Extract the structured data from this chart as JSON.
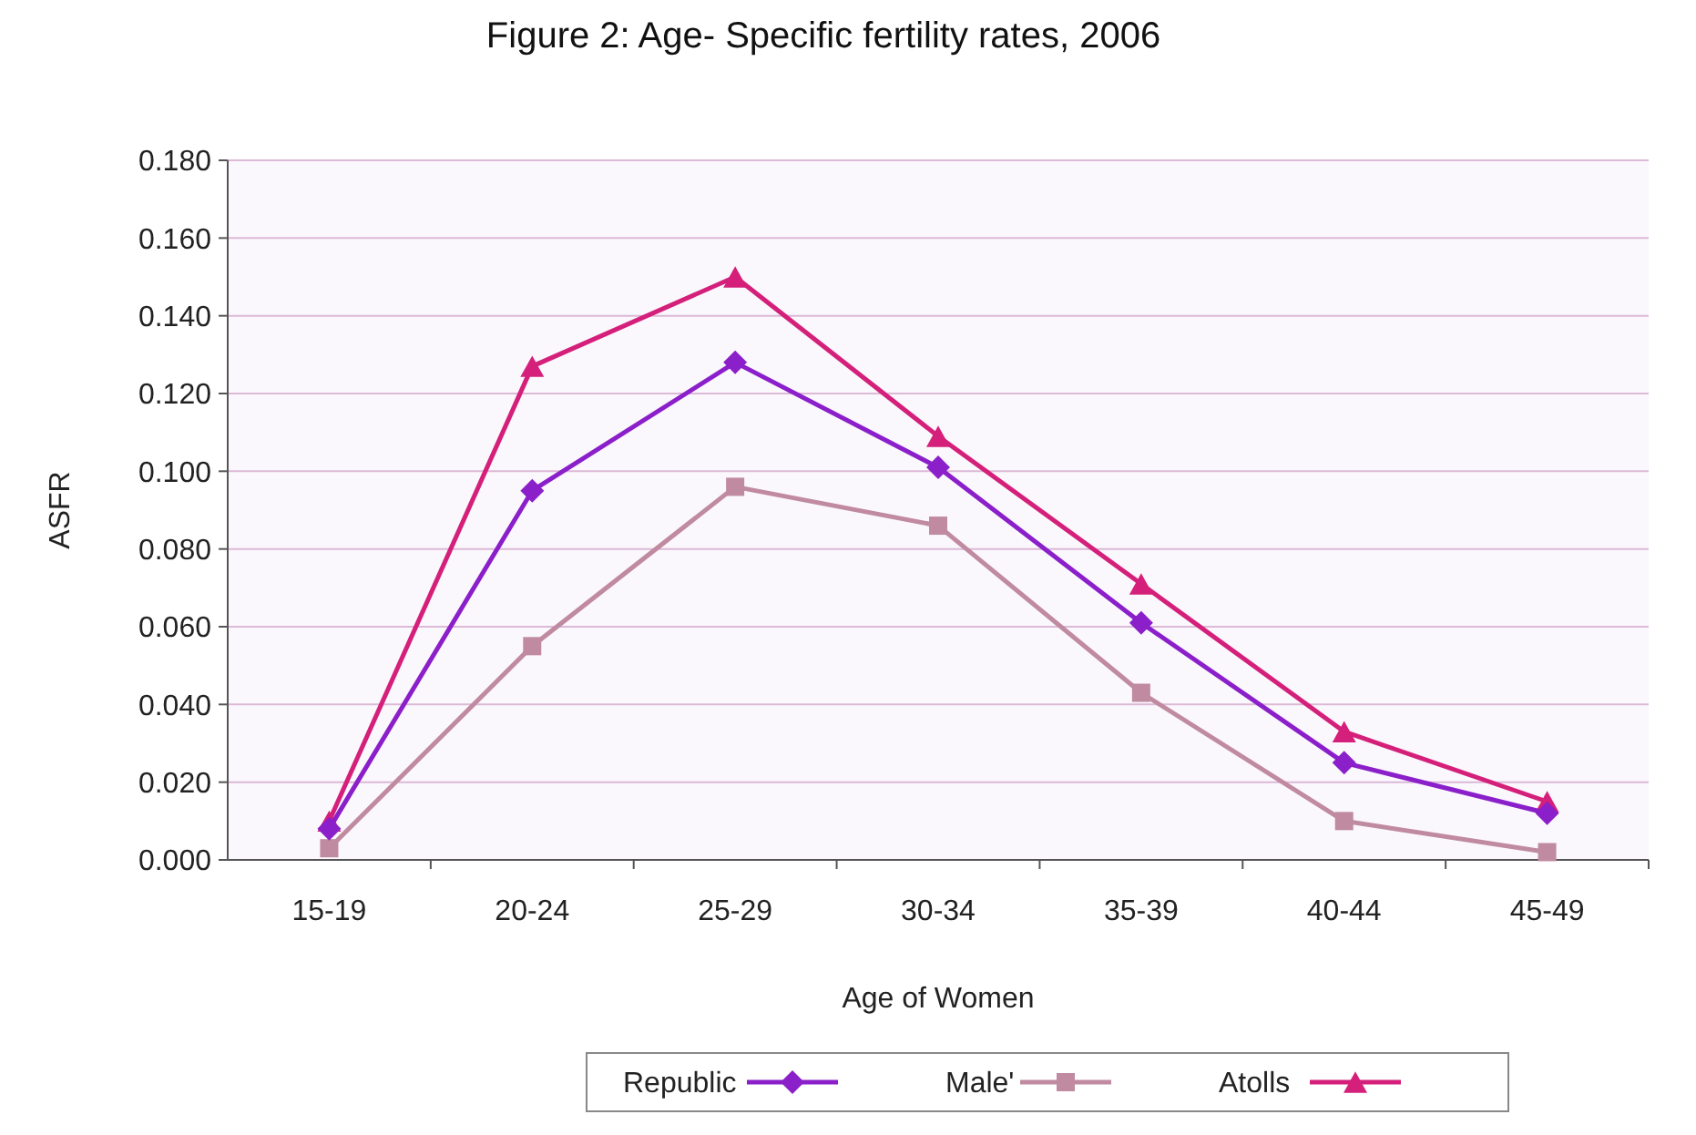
{
  "chart_data": {
    "type": "line",
    "title": "Figure 2: Age- Specific fertility rates, 2006",
    "xlabel": "Age of Women",
    "ylabel": "ASFR",
    "categories": [
      "15-19",
      "20-24",
      "25-29",
      "30-34",
      "35-39",
      "40-44",
      "45-49"
    ],
    "series": [
      {
        "name": "Republic",
        "color": "#8b1fc9",
        "marker": "diamond",
        "values": [
          0.008,
          0.095,
          0.128,
          0.101,
          0.061,
          0.025,
          0.012
        ]
      },
      {
        "name": "Male'",
        "color": "#c08aa0",
        "marker": "square",
        "values": [
          0.003,
          0.055,
          0.096,
          0.086,
          0.043,
          0.01,
          0.002
        ]
      },
      {
        "name": "Atolls",
        "color": "#d4207a",
        "marker": "triangle",
        "values": [
          0.01,
          0.127,
          0.15,
          0.109,
          0.071,
          0.033,
          0.015
        ]
      }
    ],
    "ylim": [
      0,
      0.18
    ],
    "yticks": [
      {
        "value": 0,
        "label": "0.000"
      },
      {
        "value": 0.02,
        "label": "0.020"
      },
      {
        "value": 0.04,
        "label": "0.040"
      },
      {
        "value": 0.06,
        "label": "0.060"
      },
      {
        "value": 0.08,
        "label": "0.080"
      },
      {
        "value": 0.1,
        "label": "0.100"
      },
      {
        "value": 0.12,
        "label": "0.120"
      },
      {
        "value": 0.14,
        "label": "0.140"
      },
      {
        "value": 0.16,
        "label": "0.160"
      },
      {
        "value": 0.18,
        "label": "0.180"
      }
    ],
    "grid": "y",
    "legend": "bottom",
    "line_style": "solid"
  }
}
